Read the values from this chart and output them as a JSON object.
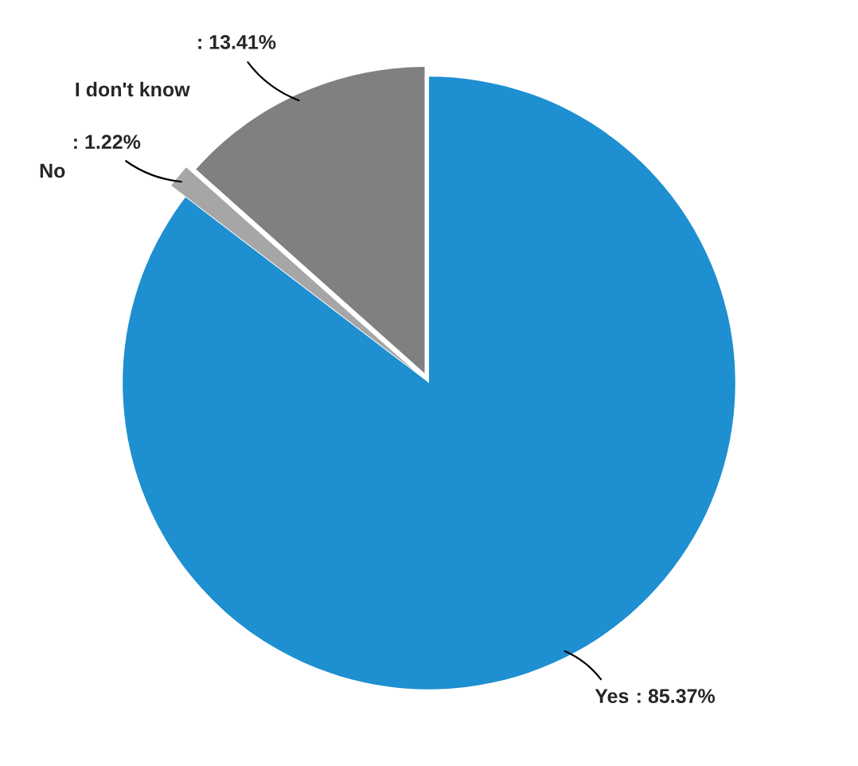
{
  "chart_data": {
    "type": "pie",
    "categories": [
      "Yes",
      "No",
      "I don't know"
    ],
    "values": [
      85.37,
      1.22,
      13.41
    ],
    "colors": [
      "#1e8fd0",
      "#a6a6a6",
      "#808080"
    ],
    "value_labels": [
      ": 85.37%",
      ": 1.22%",
      ": 13.41%"
    ]
  }
}
